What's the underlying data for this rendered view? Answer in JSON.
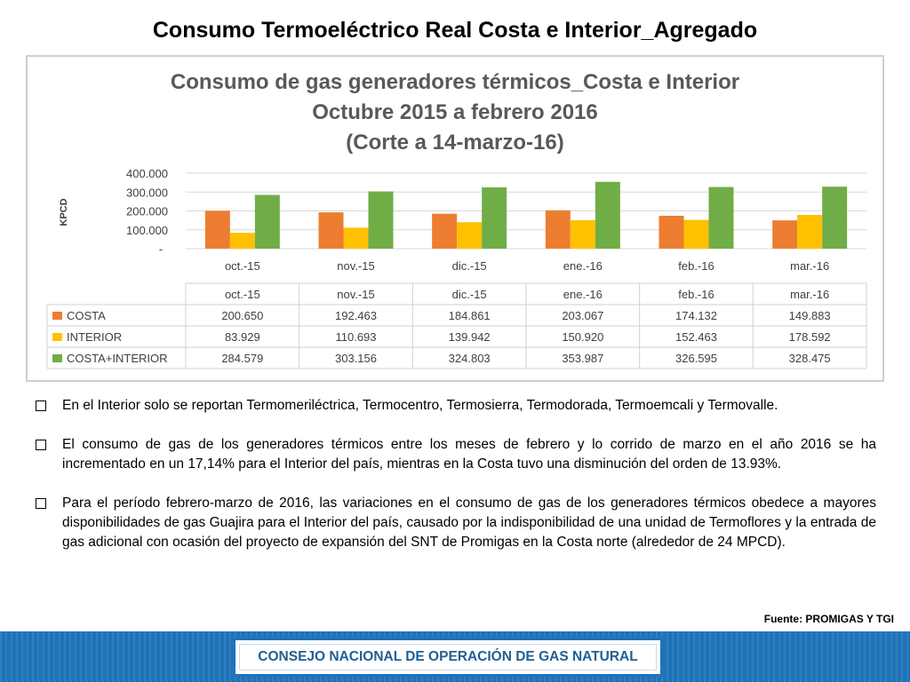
{
  "slide": {
    "title": "Consumo Termoeléctrico Real Costa e Interior_Agregado",
    "source": "Fuente: PROMIGAS Y TGI",
    "footer": "CONSEJO NACIONAL DE OPERACIÓN DE GAS NATURAL",
    "bullets": [
      "En el Interior solo se reportan Termomeriléctrica, Termocentro, Termosierra, Termodorada,  Termoemcali y Termovalle.",
      "El consumo de gas de los generadores térmicos entre los meses de febrero y lo corrido de marzo en el año 2016 se ha incrementado en un 17,14% para el Interior del país, mientras en la Costa tuvo una disminución del orden de 13.93%.",
      "Para el período febrero-marzo de 2016, las variaciones en el consumo de gas de los generadores térmicos obedece a mayores disponibilidades de gas Guajira  para el Interior del país, causado por la indisponibilidad de una unidad de Termoflores y  la entrada de gas adicional con ocasión del proyecto de expansión del SNT de Promigas en la Costa norte (alrededor de 24 MPCD)."
    ]
  },
  "chart_data": {
    "type": "bar",
    "title": [
      "Consumo de gas generadores térmicos_Costa e Interior",
      "Octubre 2015 a febrero 2016",
      "(Corte a 14-marzo-16)"
    ],
    "xlabel": "",
    "ylabel": "KPCD",
    "ylim": [
      0,
      400000
    ],
    "yticks": [
      "-",
      "100.000",
      "200.000",
      "300.000",
      "400.000"
    ],
    "categories": [
      "oct.-15",
      "nov.-15",
      "dic.-15",
      "ene.-16",
      "feb.-16",
      "mar.-16"
    ],
    "grid": true,
    "legend": "data table below chart",
    "series": [
      {
        "name": "COSTA",
        "color": "#ed7d31",
        "values": [
          200650,
          192463,
          184861,
          203067,
          174132,
          149883
        ],
        "labels": [
          "200.650",
          "192.463",
          "184.861",
          "203.067",
          "174.132",
          "149.883"
        ]
      },
      {
        "name": "INTERIOR",
        "color": "#ffc000",
        "values": [
          83929,
          110693,
          139942,
          150920,
          152463,
          178592
        ],
        "labels": [
          "83.929",
          "110.693",
          "139.942",
          "150.920",
          "152.463",
          "178.592"
        ]
      },
      {
        "name": "COSTA+INTERIOR",
        "color": "#70ad47",
        "values": [
          284579,
          303156,
          324803,
          353987,
          326595,
          328475
        ],
        "labels": [
          "284.579",
          "303.156",
          "324.803",
          "353.987",
          "326.595",
          "328.475"
        ]
      }
    ]
  }
}
